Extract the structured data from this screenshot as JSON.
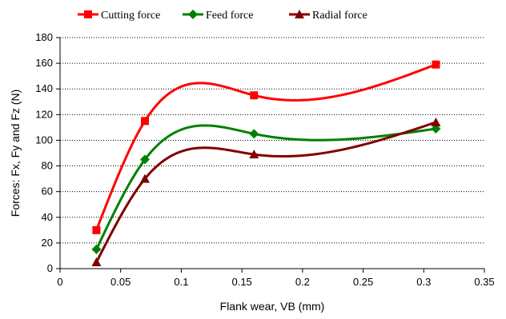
{
  "chart_data": {
    "type": "line",
    "title": "",
    "xlabel": "Flank wear, VB (mm)",
    "ylabel": "Forces: Fx, Fy and Fz (N)",
    "xlim": [
      0,
      0.35
    ],
    "ylim": [
      0,
      180
    ],
    "x_ticks": [
      "0",
      "0.05",
      "0.1",
      "0.15",
      "0.2",
      "0.25",
      "0.3",
      "0.35"
    ],
    "y_ticks": [
      "0",
      "20",
      "40",
      "60",
      "80",
      "100",
      "120",
      "140",
      "160",
      "180"
    ],
    "grid": "horizontal dotted",
    "legend_position": "top",
    "smooth": true,
    "series": [
      {
        "name": "Cutting force",
        "color": "#ff0000",
        "marker": "square",
        "x": [
          0.03,
          0.07,
          0.16,
          0.31
        ],
        "y": [
          30,
          115,
          135,
          159
        ]
      },
      {
        "name": "Feed force",
        "color": "#008000",
        "marker": "diamond",
        "x": [
          0.03,
          0.07,
          0.16,
          0.31
        ],
        "y": [
          15,
          85,
          105,
          109
        ]
      },
      {
        "name": "Radial force",
        "color": "#800000",
        "marker": "triangle",
        "x": [
          0.03,
          0.07,
          0.16,
          0.31
        ],
        "y": [
          5,
          70,
          89,
          114
        ]
      }
    ]
  }
}
